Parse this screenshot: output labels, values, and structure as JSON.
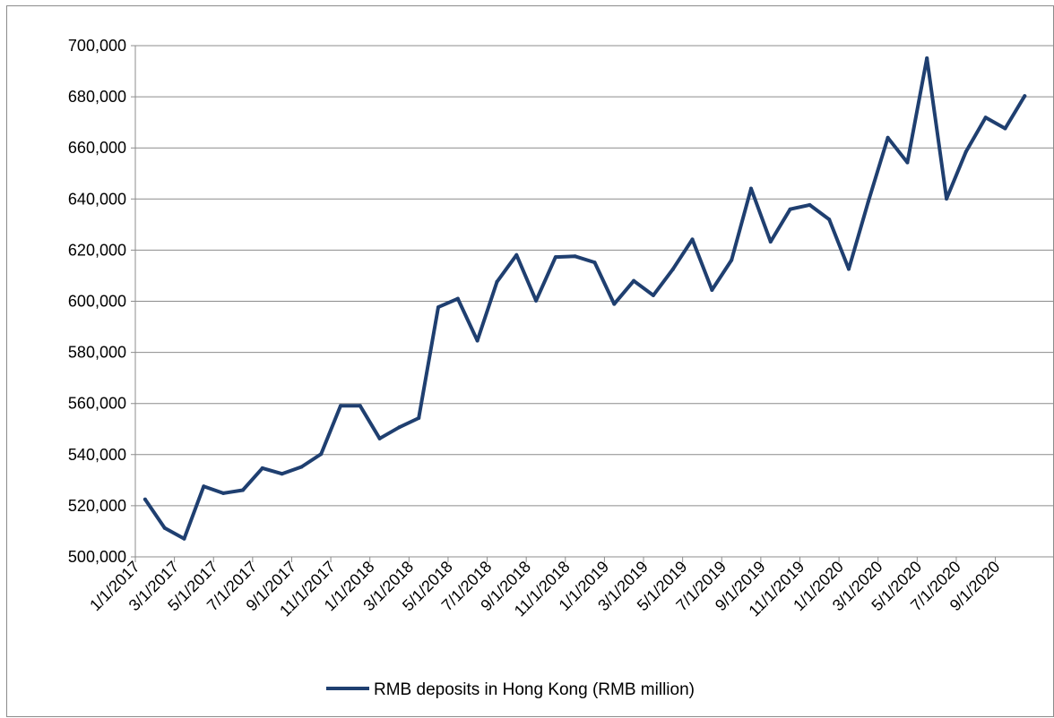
{
  "chart_data": {
    "type": "line",
    "title": "",
    "xlabel": "",
    "ylabel": "",
    "ylim": [
      500000,
      700000
    ],
    "yticks": [
      500000,
      520000,
      540000,
      560000,
      580000,
      600000,
      620000,
      640000,
      660000,
      680000,
      700000
    ],
    "ytick_labels": [
      "500,000",
      "520,000",
      "540,000",
      "560,000",
      "580,000",
      "600,000",
      "620,000",
      "640,000",
      "660,000",
      "680,000",
      "700,000"
    ],
    "xtick_labels": [
      "1/1/2017",
      "3/1/2017",
      "5/1/2017",
      "7/1/2017",
      "9/1/2017",
      "11/1/2017",
      "1/1/2018",
      "3/1/2018",
      "5/1/2018",
      "7/1/2018",
      "9/1/2018",
      "11/1/2018",
      "1/1/2019",
      "3/1/2019",
      "5/1/2019",
      "7/1/2019",
      "9/1/2019",
      "11/1/2019",
      "1/1/2020",
      "3/1/2020",
      "5/1/2020",
      "7/1/2020",
      "9/1/2020"
    ],
    "x": [
      "1/1/2017",
      "2/1/2017",
      "3/1/2017",
      "4/1/2017",
      "5/1/2017",
      "6/1/2017",
      "7/1/2017",
      "8/1/2017",
      "9/1/2017",
      "10/1/2017",
      "11/1/2017",
      "12/1/2017",
      "1/1/2018",
      "2/1/2018",
      "3/1/2018",
      "4/1/2018",
      "5/1/2018",
      "6/1/2018",
      "7/1/2018",
      "8/1/2018",
      "9/1/2018",
      "10/1/2018",
      "11/1/2018",
      "12/1/2018",
      "1/1/2019",
      "2/1/2019",
      "3/1/2019",
      "4/1/2019",
      "5/1/2019",
      "6/1/2019",
      "7/1/2019",
      "8/1/2019",
      "9/1/2019",
      "10/1/2019",
      "11/1/2019",
      "12/1/2019",
      "1/1/2020",
      "2/1/2020",
      "3/1/2020",
      "4/1/2020",
      "5/1/2020",
      "6/1/2020",
      "7/1/2020",
      "8/1/2020",
      "9/1/2020",
      "10/1/2020"
    ],
    "series": [
      {
        "name": "RMB deposits in Hong Kong (RMB million)",
        "color": "#1f3f70",
        "values": [
          522500,
          511300,
          507100,
          527600,
          524900,
          526100,
          534700,
          532500,
          535200,
          540200,
          559100,
          559100,
          546300,
          550700,
          554300,
          597700,
          601000,
          584600,
          607600,
          618100,
          600200,
          617300,
          617600,
          615200,
          598900,
          608000,
          602300,
          612500,
          624200,
          604400,
          616100,
          644100,
          623300,
          636000,
          637700,
          632000,
          612600,
          639000,
          664000,
          654300,
          695100,
          640100,
          658600,
          671900,
          667600,
          680300
        ]
      }
    ],
    "grid": "horizontal",
    "legend_position": "bottom"
  }
}
